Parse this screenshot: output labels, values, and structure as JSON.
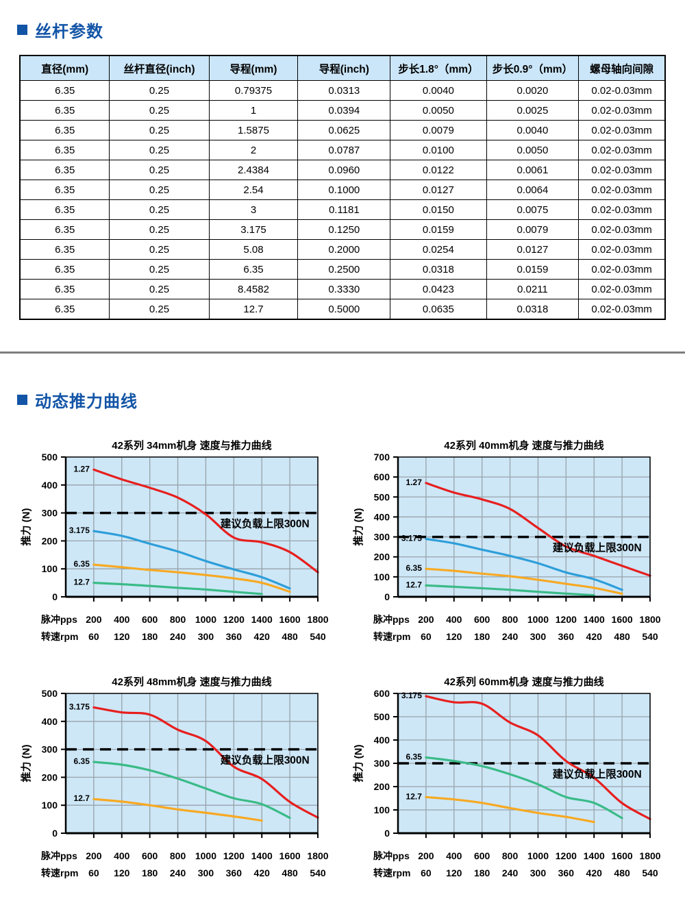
{
  "palette": {
    "accent_blue": "#1254a6",
    "divider_gray": "#7e7e7e",
    "table_header_bg": "#cbe6f8",
    "table_border": "#000000",
    "plot_bg": "#cde7f7",
    "grid": "#98a2a8",
    "axis": "#000000",
    "dashed": "#000000"
  },
  "sections": {
    "params": {
      "title": "丝杆参数"
    },
    "curves": {
      "title": "动态推力曲线"
    }
  },
  "table": {
    "headers": [
      "直径(mm)",
      "丝杆直径(inch)",
      "导程(mm)",
      "导程(inch)",
      "步长1.8°（mm）",
      "步长0.9°（mm）",
      "螺母轴向间隙"
    ],
    "rows": [
      [
        "6.35",
        "0.25",
        "0.79375",
        "0.0313",
        "0.0040",
        "0.0020",
        "0.02-0.03mm"
      ],
      [
        "6.35",
        "0.25",
        "1",
        "0.0394",
        "0.0050",
        "0.0025",
        "0.02-0.03mm"
      ],
      [
        "6.35",
        "0.25",
        "1.5875",
        "0.0625",
        "0.0079",
        "0.0040",
        "0.02-0.03mm"
      ],
      [
        "6.35",
        "0.25",
        "2",
        "0.0787",
        "0.0100",
        "0.0050",
        "0.02-0.03mm"
      ],
      [
        "6.35",
        "0.25",
        "2.4384",
        "0.0960",
        "0.0122",
        "0.0061",
        "0.02-0.03mm"
      ],
      [
        "6.35",
        "0.25",
        "2.54",
        "0.1000",
        "0.0127",
        "0.0064",
        "0.02-0.03mm"
      ],
      [
        "6.35",
        "0.25",
        "3",
        "0.1181",
        "0.0150",
        "0.0075",
        "0.02-0.03mm"
      ],
      [
        "6.35",
        "0.25",
        "3.175",
        "0.1250",
        "0.0159",
        "0.0079",
        "0.02-0.03mm"
      ],
      [
        "6.35",
        "0.25",
        "5.08",
        "0.2000",
        "0.0254",
        "0.0127",
        "0.02-0.03mm"
      ],
      [
        "6.35",
        "0.25",
        "6.35",
        "0.2500",
        "0.0318",
        "0.0159",
        "0.02-0.03mm"
      ],
      [
        "6.35",
        "0.25",
        "8.4582",
        "0.3330",
        "0.0423",
        "0.0211",
        "0.02-0.03mm"
      ],
      [
        "6.35",
        "0.25",
        "12.7",
        "0.5000",
        "0.0635",
        "0.0318",
        "0.02-0.03mm"
      ]
    ]
  },
  "chart_data": [
    {
      "type": "line",
      "title": "42系列 34mm机身 速度与推力曲线",
      "ylabel": "推力 (N)",
      "ylim": [
        0,
        500
      ],
      "ytick_step": 100,
      "x_row_labels": {
        "pps": "脉冲pps",
        "rpm": "转速rpm"
      },
      "x_pulse_pps": [
        200,
        400,
        600,
        800,
        1000,
        1200,
        1400,
        1600,
        1800
      ],
      "x_speed_rpm": [
        60,
        120,
        180,
        240,
        300,
        360,
        420,
        480,
        540
      ],
      "limit_line": {
        "y": 300,
        "label": "建议负载上限300N"
      },
      "series": [
        {
          "name": "1.27",
          "color": "#e71f1e",
          "x": [
            200,
            400,
            600,
            800,
            1000,
            1200,
            1400,
            1600,
            1800
          ],
          "y": [
            455,
            420,
            390,
            355,
            295,
            212,
            195,
            160,
            88
          ]
        },
        {
          "name": "3.175",
          "color": "#2d9ed9",
          "x": [
            200,
            400,
            600,
            800,
            1000,
            1200,
            1400,
            1600
          ],
          "y": [
            235,
            218,
            190,
            162,
            128,
            98,
            70,
            30
          ]
        },
        {
          "name": "6.35",
          "color": "#f7a923",
          "x": [
            200,
            400,
            600,
            800,
            1000,
            1200,
            1400,
            1600
          ],
          "y": [
            115,
            106,
            96,
            88,
            78,
            66,
            50,
            18
          ]
        },
        {
          "name": "12.7",
          "color": "#3abb87",
          "x": [
            200,
            400,
            600,
            800,
            1000,
            1200,
            1400
          ],
          "y": [
            50,
            45,
            39,
            32,
            26,
            18,
            10
          ]
        }
      ]
    },
    {
      "type": "line",
      "title": "42系列 40mm机身 速度与推力曲线",
      "ylabel": "推力 (N)",
      "ylim": [
        0,
        700
      ],
      "ytick_step": 100,
      "x_row_labels": {
        "pps": "脉冲pps",
        "rpm": "转速rpm"
      },
      "x_pulse_pps": [
        200,
        400,
        600,
        800,
        1000,
        1200,
        1400,
        1600,
        1800
      ],
      "x_speed_rpm": [
        60,
        120,
        180,
        240,
        300,
        360,
        420,
        480,
        540
      ],
      "limit_line": {
        "y": 300,
        "label": "建议负载上限300N"
      },
      "series": [
        {
          "name": "1.27",
          "color": "#e71f1e",
          "x": [
            200,
            400,
            600,
            800,
            1000,
            1200,
            1400,
            1600,
            1800
          ],
          "y": [
            570,
            522,
            488,
            440,
            345,
            252,
            205,
            155,
            106
          ]
        },
        {
          "name": "3.175",
          "color": "#2d9ed9",
          "x": [
            200,
            400,
            600,
            800,
            1000,
            1200,
            1400,
            1600
          ],
          "y": [
            290,
            268,
            236,
            205,
            168,
            122,
            88,
            35
          ]
        },
        {
          "name": "6.35",
          "color": "#f7a923",
          "x": [
            200,
            400,
            600,
            800,
            1000,
            1200,
            1400,
            1600
          ],
          "y": [
            140,
            130,
            116,
            103,
            85,
            65,
            45,
            15
          ]
        },
        {
          "name": "12.7",
          "color": "#3abb87",
          "x": [
            200,
            400,
            600,
            800,
            1000,
            1200,
            1400
          ],
          "y": [
            57,
            50,
            43,
            35,
            25,
            16,
            8
          ]
        }
      ]
    },
    {
      "type": "line",
      "title": "42系列 48mm机身 速度与推力曲线",
      "ylabel": "推力 (N)",
      "ylim": [
        0,
        500
      ],
      "ytick_step": 100,
      "x_row_labels": {
        "pps": "脉冲pps",
        "rpm": "转速rpm"
      },
      "x_pulse_pps": [
        200,
        400,
        600,
        800,
        1000,
        1200,
        1400,
        1600,
        1800
      ],
      "x_speed_rpm": [
        60,
        120,
        180,
        240,
        300,
        360,
        420,
        480,
        540
      ],
      "limit_line": {
        "y": 300,
        "label": "建议负载上限300N"
      },
      "series": [
        {
          "name": "3.175",
          "color": "#e71f1e",
          "x": [
            200,
            400,
            600,
            800,
            1000,
            1200,
            1400,
            1600,
            1800
          ],
          "y": [
            450,
            432,
            424,
            370,
            330,
            238,
            194,
            112,
            56
          ]
        },
        {
          "name": "6.35",
          "color": "#3abb87",
          "x": [
            200,
            400,
            600,
            800,
            1000,
            1200,
            1400,
            1600
          ],
          "y": [
            255,
            245,
            225,
            195,
            160,
            125,
            104,
            55
          ]
        },
        {
          "name": "12.7",
          "color": "#f7a923",
          "x": [
            200,
            400,
            600,
            800,
            1000,
            1200,
            1400
          ],
          "y": [
            122,
            113,
            100,
            85,
            73,
            60,
            45
          ]
        }
      ]
    },
    {
      "type": "line",
      "title": "42系列 60mm机身 速度与推力曲线",
      "ylabel": "推力 (N)",
      "ylim": [
        0,
        600
      ],
      "ytick_step": 100,
      "x_row_labels": {
        "pps": "脉冲pps",
        "rpm": "转速rpm"
      },
      "x_pulse_pps": [
        200,
        400,
        600,
        800,
        1000,
        1200,
        1400,
        1600,
        1800
      ],
      "x_speed_rpm": [
        60,
        120,
        180,
        240,
        300,
        360,
        420,
        480,
        540
      ],
      "limit_line": {
        "y": 300,
        "label": "建议负载上限300N"
      },
      "series": [
        {
          "name": "3.175",
          "color": "#e71f1e",
          "x": [
            200,
            400,
            600,
            800,
            1000,
            1200,
            1400,
            1600,
            1800
          ],
          "y": [
            588,
            562,
            556,
            475,
            420,
            310,
            238,
            129,
            61
          ]
        },
        {
          "name": "6.35",
          "color": "#3abb87",
          "x": [
            200,
            400,
            600,
            800,
            1000,
            1200,
            1400,
            1600
          ],
          "y": [
            325,
            310,
            288,
            253,
            210,
            155,
            130,
            65
          ]
        },
        {
          "name": "12.7",
          "color": "#f7a923",
          "x": [
            200,
            400,
            600,
            800,
            1000,
            1200,
            1400
          ],
          "y": [
            155,
            145,
            130,
            108,
            87,
            70,
            48
          ]
        }
      ]
    }
  ]
}
